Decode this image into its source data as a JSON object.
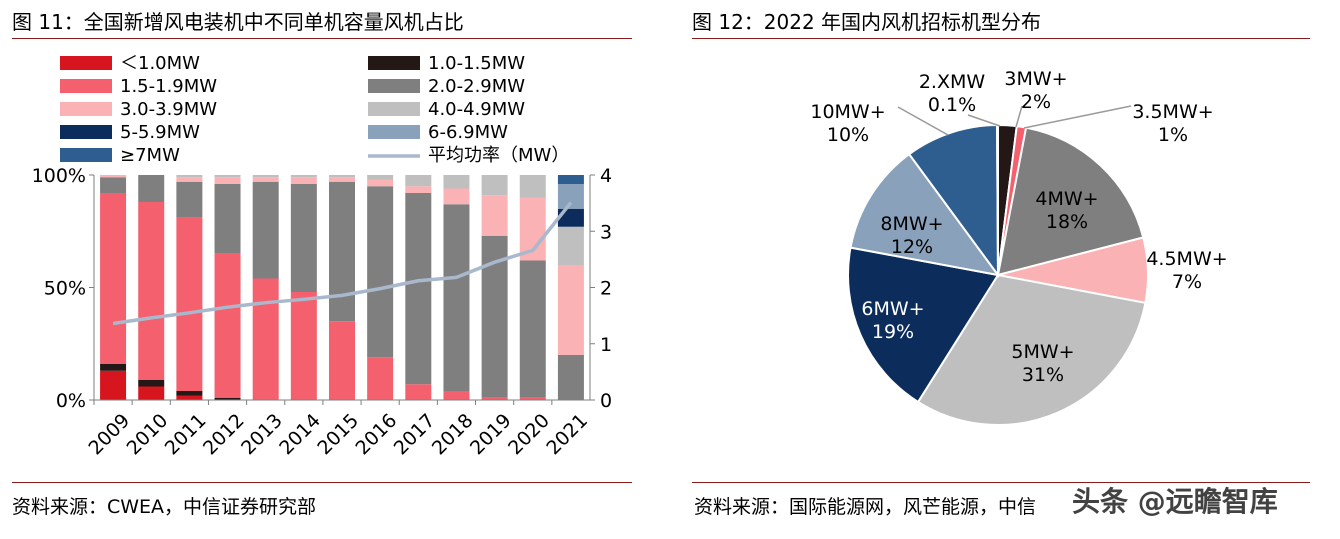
{
  "left": {
    "title": "图 11：全国新增风电装机中不同单机容量风机占比",
    "source": "资料来源：CWEA，中信证券研究部"
  },
  "right": {
    "title": "图 12：2022 年国内风机招标机型分布",
    "source": "资料来源：国际能源网，风芒能源，中信"
  },
  "watermark": "头条 @远瞻智库",
  "chart_data": [
    {
      "type": "bar",
      "stacked": true,
      "categories": [
        "2009",
        "2010",
        "2011",
        "2012",
        "2013",
        "2014",
        "2015",
        "2016",
        "2017",
        "2018",
        "2019",
        "2020",
        "2021"
      ],
      "y_left_ticks": [
        "0%",
        "50%",
        "100%"
      ],
      "y_right_ticks": [
        "0",
        "1",
        "2",
        "3",
        "4"
      ],
      "ylim": [
        0,
        100
      ],
      "y2lim": [
        0,
        4
      ],
      "legend_placement": "top",
      "series": [
        {
          "name": "＜1.0MW",
          "color": "#d7151e",
          "values": [
            13,
            6,
            2,
            0,
            0,
            0,
            0,
            0,
            0,
            0,
            0,
            0,
            0
          ]
        },
        {
          "name": "1.0-1.5MW",
          "color": "#231815",
          "values": [
            3,
            3,
            2,
            1,
            0,
            0,
            0,
            0,
            0,
            0,
            0,
            0,
            0
          ]
        },
        {
          "name": "1.5-1.9MW",
          "color": "#f4606d",
          "values": [
            76,
            79,
            77,
            64,
            54,
            48,
            35,
            19,
            7,
            4,
            1,
            1,
            0
          ]
        },
        {
          "name": "2.0-2.9MW",
          "color": "#7f7f7f",
          "values": [
            7,
            12,
            16,
            31,
            43,
            48,
            62,
            76,
            85,
            83,
            72,
            61,
            20
          ]
        },
        {
          "name": "3.0-3.9MW",
          "color": "#fbb2b5",
          "values": [
            1,
            0,
            2,
            3,
            2,
            3,
            2,
            3,
            3,
            7,
            18,
            28,
            40
          ]
        },
        {
          "name": "4.0-4.9MW",
          "color": "#bfbfbf",
          "values": [
            0,
            0,
            1,
            1,
            1,
            1,
            1,
            2,
            5,
            6,
            9,
            10,
            17
          ]
        },
        {
          "name": "5-5.9MW",
          "color": "#0c2d5c",
          "values": [
            0,
            0,
            0,
            0,
            0,
            0,
            0,
            0,
            0,
            0,
            0,
            0,
            8
          ]
        },
        {
          "name": "6-6.9MW",
          "color": "#8aa1bb",
          "values": [
            0,
            0,
            0,
            0,
            0,
            0,
            0,
            0,
            0,
            0,
            0,
            0,
            11
          ]
        },
        {
          "name": "≥7MW",
          "color": "#2e5d90",
          "values": [
            0,
            0,
            0,
            0,
            0,
            0,
            0,
            0,
            0,
            0,
            0,
            0,
            4
          ]
        }
      ],
      "line": {
        "name": "平均功率（MW）",
        "color": "#a9b8cc",
        "axis": "right",
        "values": [
          1.36,
          1.46,
          1.55,
          1.65,
          1.73,
          1.79,
          1.86,
          1.98,
          2.12,
          2.18,
          2.45,
          2.66,
          3.51
        ]
      }
    },
    {
      "type": "pie",
      "slices": [
        {
          "label": "3MW+",
          "pct_label": "2%",
          "value": 2,
          "color": "#231815"
        },
        {
          "label": "3.5MW+",
          "pct_label": "1%",
          "value": 1,
          "color": "#f4606d"
        },
        {
          "label": "4MW+",
          "pct_label": "18%",
          "value": 18,
          "color": "#7f7f7f"
        },
        {
          "label": "4.5MW+",
          "pct_label": "7%",
          "value": 7,
          "color": "#fbb2b5"
        },
        {
          "label": "5MW+",
          "pct_label": "31%",
          "value": 31,
          "color": "#bfbfbf"
        },
        {
          "label": "6MW+",
          "pct_label": "19%",
          "value": 19,
          "color": "#0c2d5c"
        },
        {
          "label": "8MW+",
          "pct_label": "12%",
          "value": 12,
          "color": "#8aa1bb"
        },
        {
          "label": "10MW+",
          "pct_label": "10%",
          "value": 10,
          "color": "#2e5d90"
        },
        {
          "label": "2.XMW",
          "pct_label": "0.1%",
          "value": 0.1,
          "color": "#d7151e"
        }
      ]
    }
  ]
}
